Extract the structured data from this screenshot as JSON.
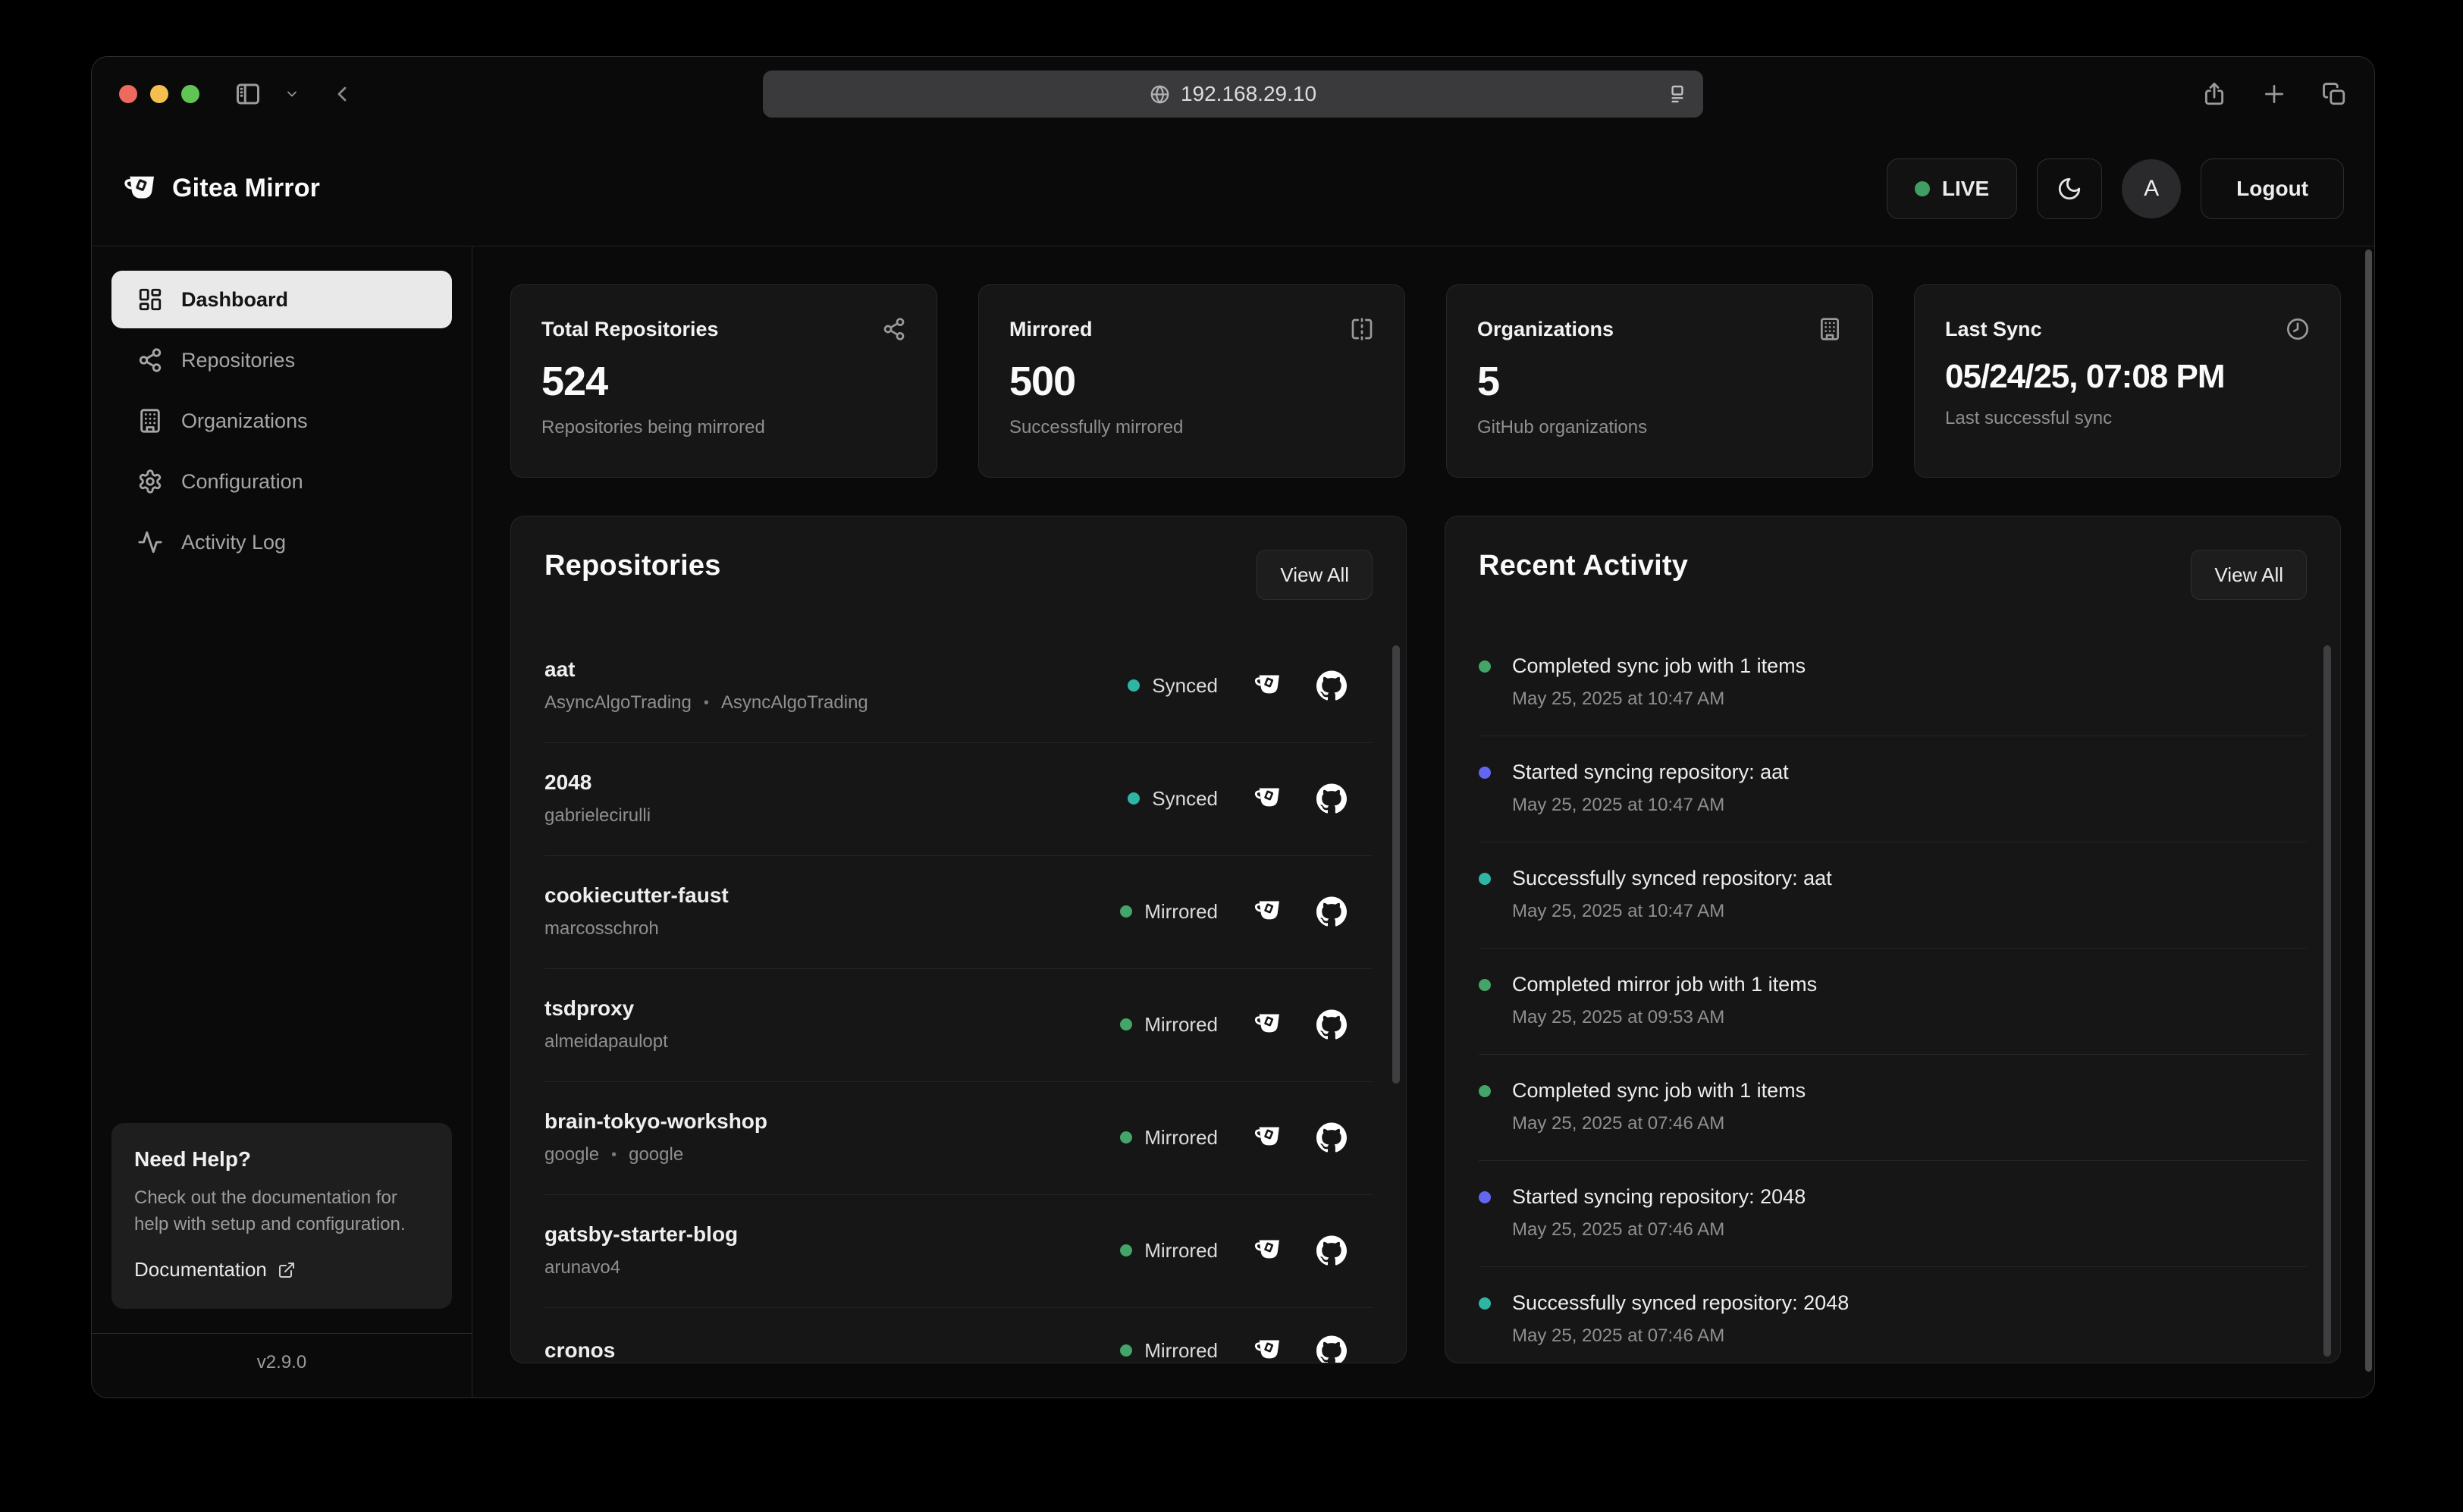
{
  "browser": {
    "url": "192.168.29.10"
  },
  "header": {
    "app_title": "Gitea Mirror",
    "live_label": "LIVE",
    "avatar_initial": "A",
    "logout_label": "Logout"
  },
  "sidebar": {
    "items": [
      {
        "label": "Dashboard",
        "icon": "dashboard-icon",
        "active": true
      },
      {
        "label": "Repositories",
        "icon": "git-network-icon",
        "active": false
      },
      {
        "label": "Organizations",
        "icon": "building-icon",
        "active": false
      },
      {
        "label": "Configuration",
        "icon": "gear-icon",
        "active": false
      },
      {
        "label": "Activity Log",
        "icon": "activity-icon",
        "active": false
      }
    ],
    "help": {
      "title": "Need Help?",
      "body": "Check out the documentation for help with setup and configuration.",
      "link_label": "Documentation"
    },
    "version": "v2.9.0"
  },
  "stats": [
    {
      "label": "Total Repositories",
      "value": "524",
      "caption": "Repositories being mirrored",
      "icon": "git-network-icon"
    },
    {
      "label": "Mirrored",
      "value": "500",
      "caption": "Successfully mirrored",
      "icon": "mirror-icon"
    },
    {
      "label": "Organizations",
      "value": "5",
      "caption": "GitHub organizations",
      "icon": "building-icon"
    },
    {
      "label": "Last Sync",
      "value": "05/24/25, 07:08 PM",
      "caption": "Last successful sync",
      "icon": "clock-icon",
      "small_value": true
    }
  ],
  "repositories": {
    "title": "Repositories",
    "view_all_label": "View All",
    "items": [
      {
        "name": "aat",
        "org": "AsyncAlgoTrading",
        "org2": "AsyncAlgoTrading",
        "status": "Synced",
        "status_color": "teal"
      },
      {
        "name": "2048",
        "org": "gabrielecirulli",
        "org2": null,
        "status": "Synced",
        "status_color": "teal"
      },
      {
        "name": "cookiecutter-faust",
        "org": "marcosschroh",
        "org2": null,
        "status": "Mirrored",
        "status_color": "green"
      },
      {
        "name": "tsdproxy",
        "org": "almeidapaulopt",
        "org2": null,
        "status": "Mirrored",
        "status_color": "green"
      },
      {
        "name": "brain-tokyo-workshop",
        "org": "google",
        "org2": "google",
        "status": "Mirrored",
        "status_color": "green"
      },
      {
        "name": "gatsby-starter-blog",
        "org": "arunavo4",
        "org2": null,
        "status": "Mirrored",
        "status_color": "green"
      },
      {
        "name": "cronos",
        "org": "",
        "org2": null,
        "status": "Mirrored",
        "status_color": "green"
      }
    ]
  },
  "activity": {
    "title": "Recent Activity",
    "view_all_label": "View All",
    "items": [
      {
        "text": "Completed sync job with 1 items",
        "time": "May 25, 2025 at 10:47 AM",
        "dot": "green"
      },
      {
        "text": "Started syncing repository: aat",
        "time": "May 25, 2025 at 10:47 AM",
        "dot": "indigo"
      },
      {
        "text": "Successfully synced repository: aat",
        "time": "May 25, 2025 at 10:47 AM",
        "dot": "teal"
      },
      {
        "text": "Completed mirror job with 1 items",
        "time": "May 25, 2025 at 09:53 AM",
        "dot": "green"
      },
      {
        "text": "Completed sync job with 1 items",
        "time": "May 25, 2025 at 07:46 AM",
        "dot": "green"
      },
      {
        "text": "Started syncing repository: 2048",
        "time": "May 25, 2025 at 07:46 AM",
        "dot": "indigo"
      },
      {
        "text": "Successfully synced repository: 2048",
        "time": "May 25, 2025 at 07:46 AM",
        "dot": "teal"
      }
    ]
  },
  "colors": {
    "teal": "#2fb5a4",
    "green": "#43a567",
    "indigo": "#6366f1",
    "live_green": "#3f9e63",
    "traffic_red": "#ec6a5e",
    "traffic_yellow": "#f4bf4f",
    "traffic_green": "#61c554"
  }
}
